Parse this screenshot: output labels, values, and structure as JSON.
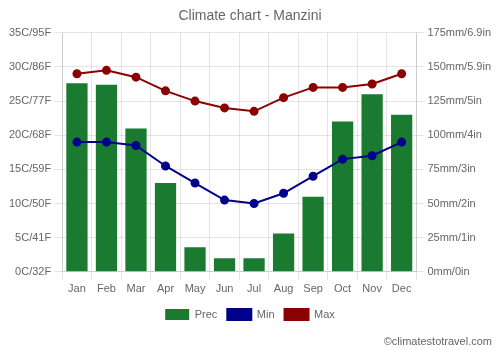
{
  "chart_data": {
    "type": "bar",
    "title": "Climate chart - Manzini",
    "categories": [
      "Jan",
      "Feb",
      "Mar",
      "Apr",
      "May",
      "Jun",
      "Jul",
      "Aug",
      "Sep",
      "Oct",
      "Nov",
      "Dec"
    ],
    "series": [
      {
        "name": "Prec",
        "type": "bar",
        "axis": "y2",
        "color": "#1a7a30",
        "values": [
          138,
          137,
          105,
          65,
          18,
          10,
          10,
          28,
          55,
          110,
          130,
          115
        ]
      },
      {
        "name": "Min",
        "type": "line",
        "color": "#00008B",
        "marker": "circle",
        "values": [
          19,
          19,
          18.5,
          15.5,
          13,
          10.5,
          10,
          11.5,
          14,
          16.5,
          17,
          19
        ]
      },
      {
        "name": "Max",
        "type": "line",
        "color": "#8B0000",
        "marker": "circle",
        "values": [
          29,
          29.5,
          28.5,
          26.5,
          25,
          24,
          23.5,
          25.5,
          27,
          27,
          27.5,
          29
        ]
      }
    ],
    "ylim": [
      0,
      35
    ],
    "yticks": [
      {
        "value": 0,
        "label": "0C/32F"
      },
      {
        "value": 5,
        "label": "5C/41F"
      },
      {
        "value": 10,
        "label": "10C/50F"
      },
      {
        "value": 15,
        "label": "15C/59F"
      },
      {
        "value": 20,
        "label": "20C/68F"
      },
      {
        "value": 25,
        "label": "25C/77F"
      },
      {
        "value": 30,
        "label": "30C/86F"
      },
      {
        "value": 35,
        "label": "35C/95F"
      }
    ],
    "y2lim": [
      0,
      175
    ],
    "y2ticks": [
      {
        "value": 0,
        "label": "0mm/0in"
      },
      {
        "value": 25,
        "label": "25mm/1in"
      },
      {
        "value": 50,
        "label": "50mm/2in"
      },
      {
        "value": 75,
        "label": "75mm/3in"
      },
      {
        "value": 100,
        "label": "100mm/4in"
      },
      {
        "value": 125,
        "label": "125mm/5in"
      },
      {
        "value": 150,
        "label": "150mm/5.9in"
      },
      {
        "value": 175,
        "label": "175mm/6.9in"
      }
    ],
    "grid": true,
    "legend": "bottom",
    "annotations": [
      "©climatestotravel.com"
    ]
  }
}
